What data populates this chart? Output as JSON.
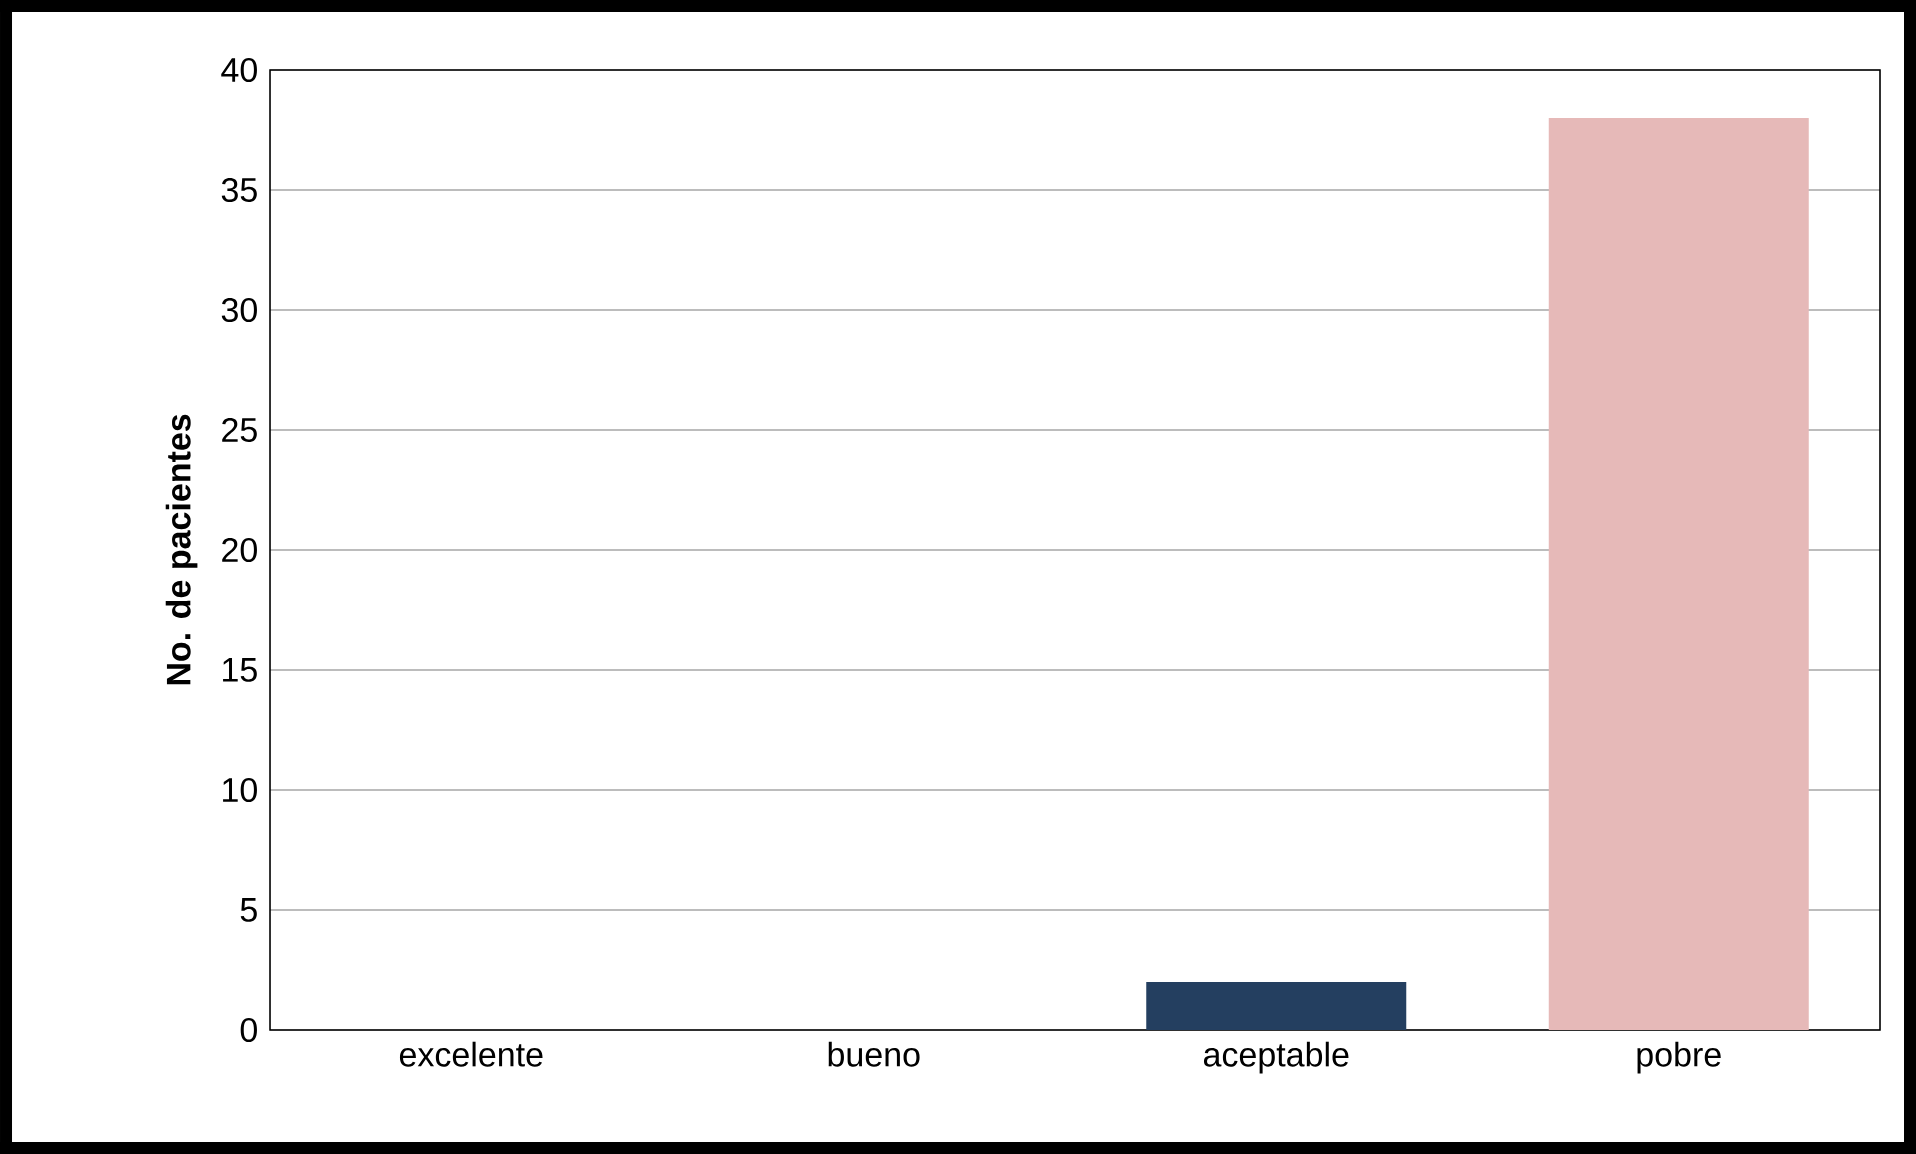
{
  "chart_data": {
    "type": "bar",
    "ylabel": "No. de pacientes",
    "categories": [
      "excelente",
      "bueno",
      "aceptable",
      "pobre"
    ],
    "values": [
      0,
      0,
      2,
      38
    ],
    "colors": [
      "#243f60",
      "#243f60",
      "#243f60",
      "#e6b9b8"
    ],
    "ylim": [
      0,
      40
    ],
    "yticks": [
      0,
      5,
      10,
      15,
      20,
      25,
      30,
      35,
      40
    ],
    "grid": "y"
  }
}
